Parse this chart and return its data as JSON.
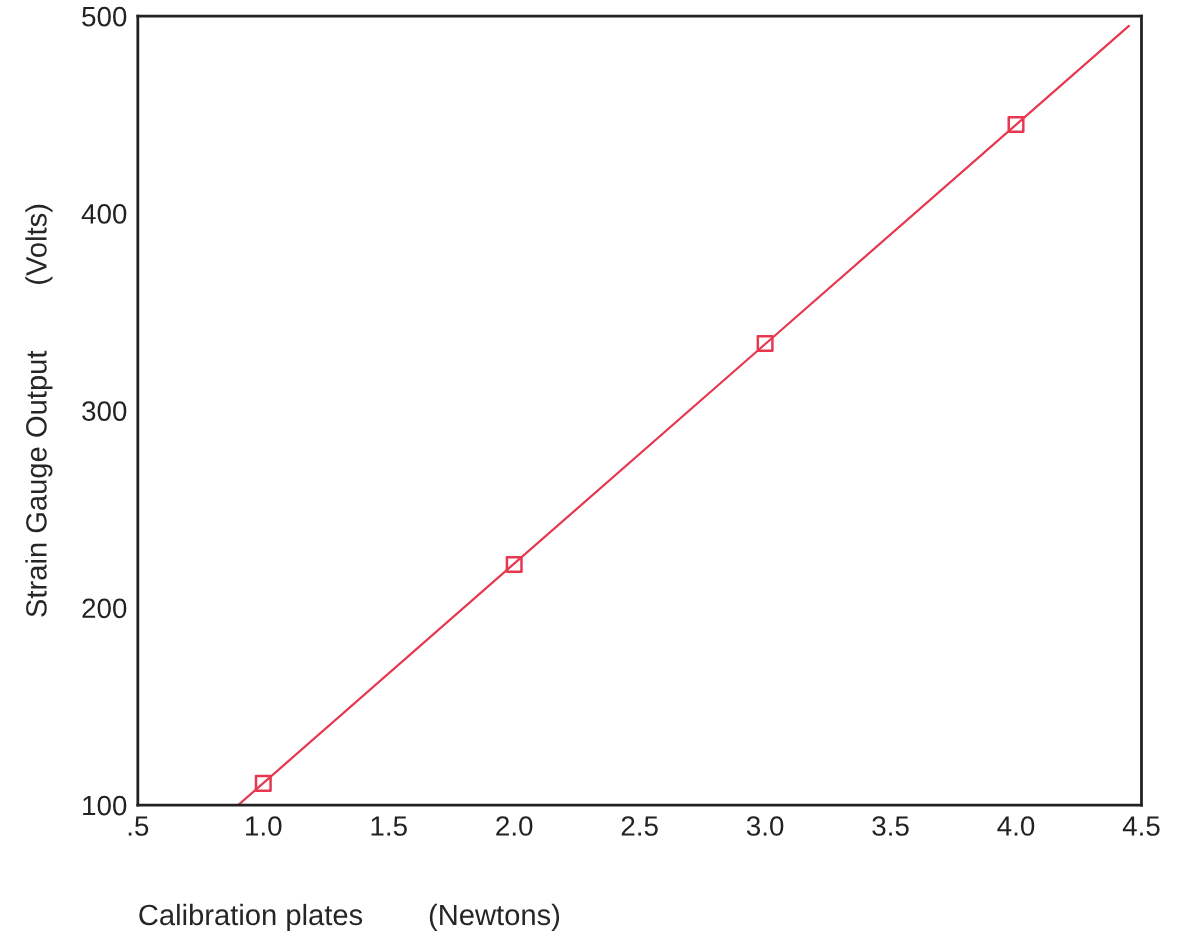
{
  "chart_data": {
    "type": "scatter",
    "xlabel": "Calibration plates        (Newtons)",
    "ylabel": "Strain Gauge Output        (Volts)",
    "series": [
      {
        "color": "#e8384f",
        "x": [
          1.0,
          2.0,
          3.0,
          4.0
        ],
        "values": [
          111,
          222,
          334,
          445
        ],
        "marker": "square"
      },
      {
        "type": "line",
        "color": "#e8384f",
        "x": [
          0.9,
          4.45
        ],
        "values": [
          100,
          495
        ],
        "marker": "none",
        "line_style": "solid"
      }
    ],
    "xlim": [
      0.5,
      4.5
    ],
    "xticks": [
      {
        "value": 0.5,
        "label": ".5"
      },
      {
        "value": 1.0,
        "label": "1.0"
      },
      {
        "value": 1.5,
        "label": "1.5"
      },
      {
        "value": 2.0,
        "label": "2.0"
      },
      {
        "value": 2.5,
        "label": "2.5"
      },
      {
        "value": 3.0,
        "label": "3.0"
      },
      {
        "value": 3.5,
        "label": "3.5"
      },
      {
        "value": 4.0,
        "label": "4.0"
      },
      {
        "value": 4.5,
        "label": "4.5"
      }
    ],
    "ylim": [
      100,
      500
    ],
    "yticks": [
      100,
      200,
      300,
      400,
      500
    ],
    "grid": false,
    "legend": false
  }
}
